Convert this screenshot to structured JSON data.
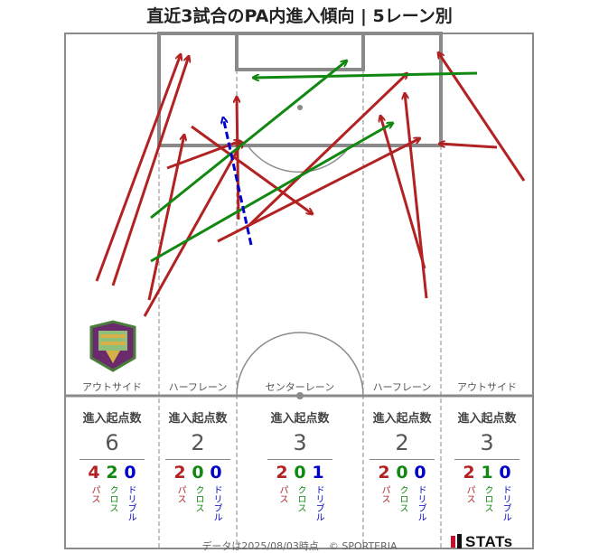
{
  "title": "直近3試合のPA内進入傾向 | 5レーン別",
  "footer": "データは2025/08/03時点　© SPORTERIA",
  "logo_text": "STATs",
  "lanes": [
    {
      "label": "アウトサイド",
      "head": "進入起点数",
      "total": "6",
      "pass": "4",
      "cross": "2",
      "dribble": "0"
    },
    {
      "label": "ハーフレーン",
      "head": "進入起点数",
      "total": "2",
      "pass": "2",
      "cross": "0",
      "dribble": "0"
    },
    {
      "label": "センターレーン",
      "head": "進入起点数",
      "total": "3",
      "pass": "2",
      "cross": "0",
      "dribble": "1"
    },
    {
      "label": "ハーフレーン",
      "head": "進入起点数",
      "total": "2",
      "pass": "2",
      "cross": "0",
      "dribble": "0"
    },
    {
      "label": "アウトサイド",
      "head": "進入起点数",
      "total": "3",
      "pass": "2",
      "cross": "1",
      "dribble": "0"
    }
  ],
  "type_labels": {
    "pass": "パス",
    "cross": "クロス",
    "dribble": "ドリブル"
  },
  "colors": {
    "pass": "#b22222",
    "cross": "#118811",
    "dribble": "#0000cc",
    "lines": "#888888"
  },
  "chart_data": {
    "type": "scatter",
    "title": "直近3試合のPA内進入傾向 | 5レーン別",
    "categories": [
      "アウトサイド",
      "ハーフレーン",
      "センターレーン",
      "ハーフレーン",
      "アウトサイド"
    ],
    "series": [
      {
        "name": "パス",
        "values": [
          4,
          2,
          2,
          2,
          2
        ]
      },
      {
        "name": "クロス",
        "values": [
          2,
          0,
          0,
          0,
          1
        ]
      },
      {
        "name": "ドリブル",
        "values": [
          0,
          0,
          1,
          0,
          0
        ]
      }
    ],
    "totals": [
      6,
      2,
      3,
      2,
      3
    ],
    "arrows": [
      {
        "kind": "pass",
        "from": [
          107,
          311
        ],
        "to": [
          200,
          60
        ]
      },
      {
        "kind": "pass",
        "from": [
          125,
          316
        ],
        "to": [
          209,
          62
        ]
      },
      {
        "kind": "pass",
        "from": [
          165,
          332
        ],
        "to": [
          204,
          149
        ]
      },
      {
        "kind": "pass",
        "from": [
          185,
          186
        ],
        "to": [
          266,
          156
        ]
      },
      {
        "kind": "pass",
        "from": [
          160,
          350
        ],
        "to": [
          268,
          157
        ]
      },
      {
        "kind": "pass",
        "from": [
          212,
          140
        ],
        "to": [
          346,
          237
        ]
      },
      {
        "kind": "pass",
        "from": [
          264,
          243
        ],
        "to": [
          262,
          107
        ]
      },
      {
        "kind": "pass",
        "from": [
          241,
          267
        ],
        "to": [
          465,
          153
        ]
      },
      {
        "kind": "pass",
        "from": [
          275,
          250
        ],
        "to": [
          451,
          81
        ]
      },
      {
        "kind": "pass",
        "from": [
          470,
          297
        ],
        "to": [
          421,
          128
        ]
      },
      {
        "kind": "pass",
        "from": [
          472,
          330
        ],
        "to": [
          448,
          103
        ]
      },
      {
        "kind": "pass",
        "from": [
          580,
          200
        ],
        "to": [
          485,
          58
        ]
      },
      {
        "kind": "pass",
        "from": [
          550,
          163
        ],
        "to": [
          486,
          159
        ]
      },
      {
        "kind": "cross",
        "from": [
          167,
          241
        ],
        "to": [
          384,
          67
        ]
      },
      {
        "kind": "cross",
        "from": [
          167,
          289
        ],
        "to": [
          435,
          136
        ]
      },
      {
        "kind": "cross",
        "from": [
          528,
          81
        ],
        "to": [
          280,
          86
        ]
      },
      {
        "kind": "dribble",
        "from": [
          278,
          271
        ],
        "to": [
          247,
          130
        ]
      }
    ]
  }
}
